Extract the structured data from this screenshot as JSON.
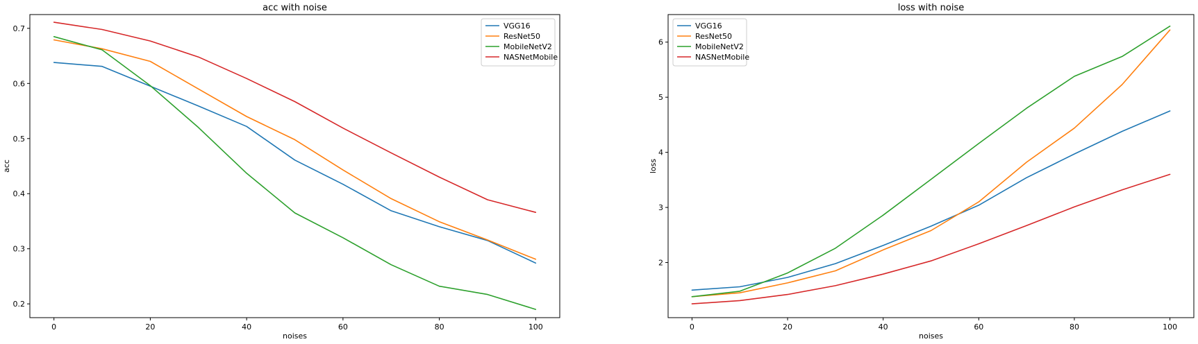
{
  "chart_data": [
    {
      "type": "line",
      "title": "acc with noise",
      "xlabel": "noises",
      "ylabel": "acc",
      "x": [
        0,
        10,
        20,
        30,
        40,
        50,
        60,
        70,
        80,
        90,
        100
      ],
      "xlim": [
        -5,
        105
      ],
      "ylim": [
        0.175,
        0.725
      ],
      "xticks": [
        0,
        20,
        40,
        60,
        80,
        100
      ],
      "yticks": [
        0.2,
        0.3,
        0.4,
        0.5,
        0.6,
        0.7
      ],
      "legend_position": "top-right",
      "grid": false,
      "series": [
        {
          "name": "VGG16",
          "color": "#1f77b4",
          "values": [
            0.638,
            0.631,
            0.595,
            0.559,
            0.522,
            0.461,
            0.417,
            0.369,
            0.34,
            0.315,
            0.274
          ]
        },
        {
          "name": "ResNet50",
          "color": "#ff7f0e",
          "values": [
            0.679,
            0.663,
            0.64,
            0.59,
            0.54,
            0.498,
            0.443,
            0.391,
            0.349,
            0.316,
            0.281
          ]
        },
        {
          "name": "MobileNetV2",
          "color": "#2ca02c",
          "values": [
            0.685,
            0.661,
            0.596,
            0.52,
            0.437,
            0.365,
            0.32,
            0.271,
            0.232,
            0.217,
            0.19
          ]
        },
        {
          "name": "NASNetMobile",
          "color": "#d62728",
          "values": [
            0.711,
            0.698,
            0.677,
            0.648,
            0.609,
            0.567,
            0.519,
            0.474,
            0.43,
            0.389,
            0.366
          ]
        }
      ]
    },
    {
      "type": "line",
      "title": "loss with noise",
      "xlabel": "noises",
      "ylabel": "loss",
      "x": [
        0,
        10,
        20,
        30,
        40,
        50,
        60,
        70,
        80,
        90,
        100
      ],
      "xlim": [
        -5,
        105
      ],
      "ylim": [
        1.0,
        6.5
      ],
      "xticks": [
        0,
        20,
        40,
        60,
        80,
        100
      ],
      "yticks": [
        2,
        3,
        4,
        5,
        6
      ],
      "legend_position": "top-left",
      "grid": false,
      "series": [
        {
          "name": "VGG16",
          "color": "#1f77b4",
          "values": [
            1.5,
            1.56,
            1.73,
            1.98,
            2.31,
            2.66,
            3.04,
            3.54,
            3.97,
            4.38,
            4.75
          ]
        },
        {
          "name": "ResNet50",
          "color": "#ff7f0e",
          "values": [
            1.38,
            1.45,
            1.63,
            1.85,
            2.23,
            2.58,
            3.1,
            3.82,
            4.44,
            5.23,
            6.22
          ]
        },
        {
          "name": "MobileNetV2",
          "color": "#2ca02c",
          "values": [
            1.38,
            1.48,
            1.81,
            2.26,
            2.86,
            3.51,
            4.16,
            4.8,
            5.38,
            5.74,
            6.29
          ]
        },
        {
          "name": "NASNetMobile",
          "color": "#d62728",
          "values": [
            1.25,
            1.31,
            1.42,
            1.58,
            1.79,
            2.03,
            2.34,
            2.67,
            3.01,
            3.32,
            3.6
          ]
        }
      ]
    }
  ]
}
